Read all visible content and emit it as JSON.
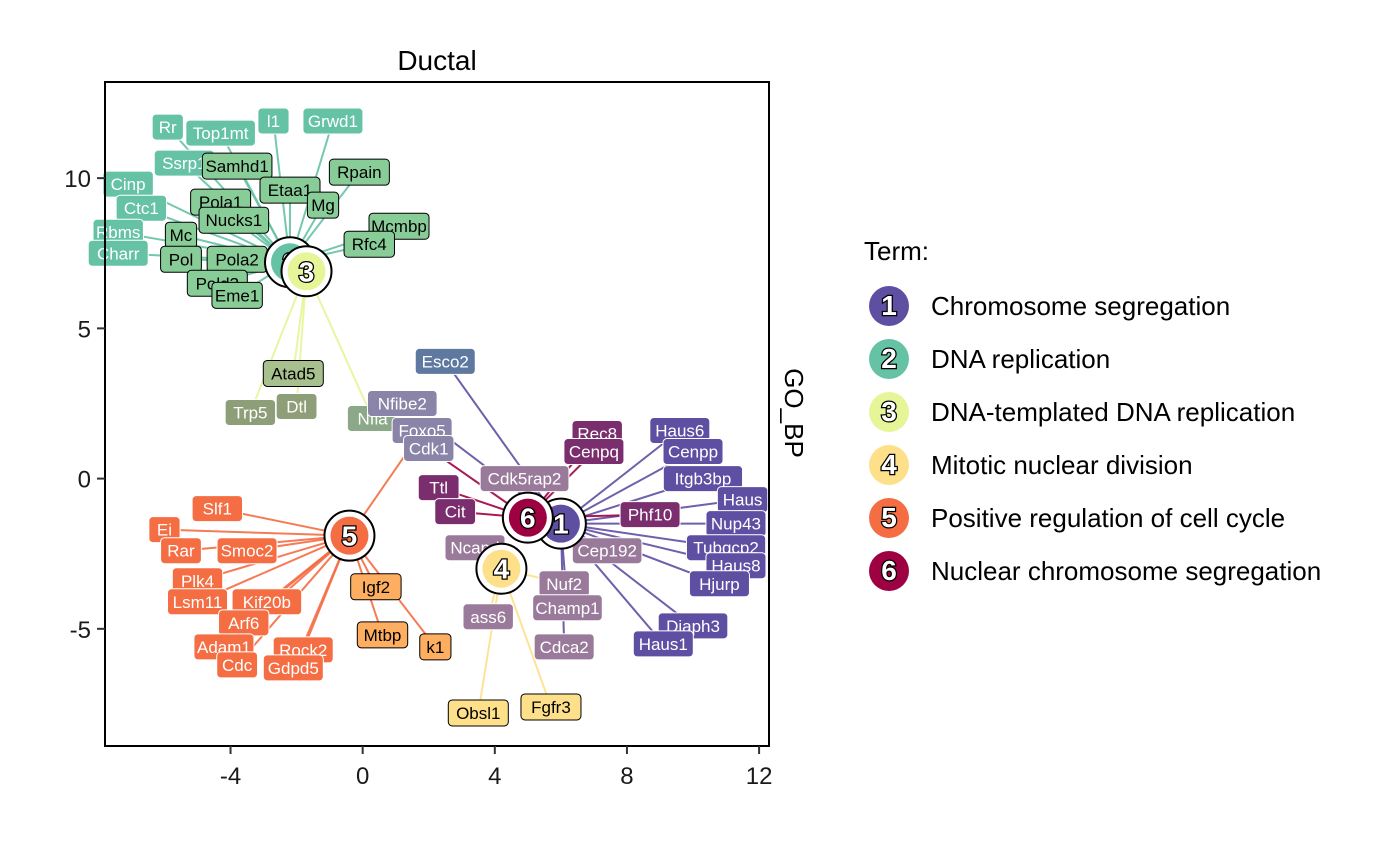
{
  "chart_data": {
    "type": "scatter",
    "title": "Ductal",
    "strip_label": "GO_BP",
    "xlim": [
      -7.8,
      12.3
    ],
    "ylim": [
      -8.9,
      13.2
    ],
    "x_ticks": [
      -4,
      0,
      4,
      8,
      12
    ],
    "y_ticks": [
      -5,
      0,
      5,
      10
    ],
    "legend": {
      "title": "Term:",
      "placement": "right",
      "entries": [
        {
          "id": "1",
          "label": "Chromosome segregation",
          "color": "#5E4FA2"
        },
        {
          "id": "2",
          "label": "DNA replication",
          "color": "#66C2A5"
        },
        {
          "id": "3",
          "label": "DNA-templated DNA replication",
          "color": "#E6F598"
        },
        {
          "id": "4",
          "label": "Mitotic nuclear division",
          "color": "#FEE08B"
        },
        {
          "id": "5",
          "label": "Positive regulation of cell cycle",
          "color": "#F46D43"
        },
        {
          "id": "6",
          "label": "Nuclear chromosome segregation",
          "color": "#9E0142"
        }
      ]
    },
    "term_centers": [
      {
        "id": "1",
        "x": 6.0,
        "y": -1.5
      },
      {
        "id": "2",
        "x": -2.2,
        "y": 7.2
      },
      {
        "id": "3",
        "x": -1.7,
        "y": 6.9
      },
      {
        "id": "4",
        "x": 4.2,
        "y": -3.0
      },
      {
        "id": "5",
        "x": -0.4,
        "y": -1.9
      },
      {
        "id": "6",
        "x": 5.0,
        "y": -1.3
      }
    ],
    "genes": [
      {
        "label": "Rr",
        "x": -5.9,
        "y": 11.7,
        "color": "#66C2A5",
        "term": "2"
      },
      {
        "label": "Top1mt",
        "x": -4.3,
        "y": 11.5,
        "color": "#66C2A5",
        "term": "2"
      },
      {
        "label": "l1",
        "x": -2.7,
        "y": 11.9,
        "color": "#66C2A5",
        "term": "2"
      },
      {
        "label": "Grwd1",
        "x": -0.9,
        "y": 11.9,
        "color": "#66C2A5",
        "term": "2"
      },
      {
        "label": "Ssrp1",
        "x": -5.4,
        "y": 10.5,
        "color": "#66C2A5",
        "term": "2"
      },
      {
        "label": "Cinp",
        "x": -7.1,
        "y": 9.8,
        "color": "#66C2A5",
        "term": "2"
      },
      {
        "label": "Ctc1",
        "x": -6.7,
        "y": 9.0,
        "color": "#66C2A5",
        "term": "2"
      },
      {
        "label": "Rbms",
        "x": -7.4,
        "y": 8.2,
        "color": "#66C2A5",
        "term": "2"
      },
      {
        "label": "Charr",
        "x": -7.4,
        "y": 7.5,
        "color": "#66C2A5",
        "term": "2"
      },
      {
        "label": "Samhd1",
        "x": -3.8,
        "y": 10.4,
        "color": "#88CC98",
        "term": "2"
      },
      {
        "label": "Rpain",
        "x": -0.1,
        "y": 10.2,
        "color": "#88CC98",
        "term": "2"
      },
      {
        "label": "Etaa1",
        "x": -2.2,
        "y": 9.6,
        "color": "#88CC98",
        "term": "2"
      },
      {
        "label": "Pola1",
        "x": -4.3,
        "y": 9.2,
        "color": "#88CC98",
        "term": "2"
      },
      {
        "label": "Nucks1",
        "x": -3.9,
        "y": 8.6,
        "color": "#88CC98",
        "term": "2"
      },
      {
        "label": "Mg",
        "x": -1.2,
        "y": 9.1,
        "color": "#88CC98",
        "term": "2"
      },
      {
        "label": "Mcmbp",
        "x": 1.1,
        "y": 8.4,
        "color": "#88CC98",
        "term": "2"
      },
      {
        "label": "Mc",
        "x": -5.5,
        "y": 8.1,
        "color": "#88CC98",
        "term": "2"
      },
      {
        "label": "Rfc4",
        "x": 0.2,
        "y": 7.8,
        "color": "#88CC98",
        "term": "2"
      },
      {
        "label": "Pola2",
        "x": -3.8,
        "y": 7.3,
        "color": "#88CC98",
        "term": "2"
      },
      {
        "label": "Pol",
        "x": -5.5,
        "y": 7.3,
        "color": "#88CC98",
        "term": "2"
      },
      {
        "label": "Pold3",
        "x": -4.4,
        "y": 6.5,
        "color": "#88CC98",
        "term": "2"
      },
      {
        "label": "Eme1",
        "x": -3.8,
        "y": 6.1,
        "color": "#88CC98",
        "term": "2"
      },
      {
        "label": "Atad5",
        "x": -2.1,
        "y": 3.5,
        "color": "#A8C08E",
        "term": "3"
      },
      {
        "label": "Dtl",
        "x": -2.0,
        "y": 2.4,
        "color": "#8E9E78",
        "term": "3"
      },
      {
        "label": "Trp5",
        "x": -3.4,
        "y": 2.2,
        "color": "#8E9E78",
        "term": "3"
      },
      {
        "label": "Nfia",
        "x": 0.3,
        "y": 2.0,
        "color": "#8BA888",
        "term": "3"
      },
      {
        "label": "Esco2",
        "x": 2.5,
        "y": 3.9,
        "color": "#5E78A0",
        "term": "1"
      },
      {
        "label": "Nfibe2",
        "x": 1.2,
        "y": 2.5,
        "color": "#8A84A8",
        "term": "1"
      },
      {
        "label": "Foxo5",
        "x": 1.8,
        "y": 1.6,
        "color": "#8A84A8",
        "term": "5"
      },
      {
        "label": "Cdk1",
        "x": 2.0,
        "y": 1.0,
        "color": "#8A84A8",
        "term": "6"
      },
      {
        "label": "Rec8",
        "x": 7.1,
        "y": 1.5,
        "color": "#7A2E6E",
        "term": "6"
      },
      {
        "label": "Cenpq",
        "x": 7.0,
        "y": 0.9,
        "color": "#7A2E6E",
        "term": "6"
      },
      {
        "label": "Haus6",
        "x": 9.6,
        "y": 1.6,
        "color": "#5E4FA2",
        "term": "1"
      },
      {
        "label": "Cenpp",
        "x": 10.0,
        "y": 0.9,
        "color": "#5E4FA2",
        "term": "1"
      },
      {
        "label": "Itgb3bp",
        "x": 10.3,
        "y": 0.0,
        "color": "#5E4FA2",
        "term": "1"
      },
      {
        "label": "Haus",
        "x": 11.5,
        "y": -0.7,
        "color": "#5E4FA2",
        "term": "1"
      },
      {
        "label": "Nup43",
        "x": 11.3,
        "y": -1.5,
        "color": "#5E4FA2",
        "term": "1"
      },
      {
        "label": "Tubgcp2",
        "x": 11.0,
        "y": -2.3,
        "color": "#5E4FA2",
        "term": "1"
      },
      {
        "label": "Haus8",
        "x": 11.3,
        "y": -2.9,
        "color": "#5E4FA2",
        "term": "1"
      },
      {
        "label": "Hjurp",
        "x": 10.8,
        "y": -3.5,
        "color": "#5E4FA2",
        "term": "1"
      },
      {
        "label": "Diaph3",
        "x": 10.0,
        "y": -4.9,
        "color": "#5E4FA2",
        "term": "1"
      },
      {
        "label": "Haus1",
        "x": 9.1,
        "y": -5.5,
        "color": "#5E4FA2",
        "term": "1"
      },
      {
        "label": "Phf10",
        "x": 8.7,
        "y": -1.2,
        "color": "#7A2E6E",
        "term": "6"
      },
      {
        "label": "Ttl",
        "x": 2.3,
        "y": -0.3,
        "color": "#7A2E6E",
        "term": "6"
      },
      {
        "label": "Cit",
        "x": 2.8,
        "y": -1.1,
        "color": "#7A2E6E",
        "term": "6"
      },
      {
        "label": "Cdk5rap2",
        "x": 4.9,
        "y": 0.0,
        "color": "#9A7A9A",
        "term": "1"
      },
      {
        "label": "Ncapd",
        "x": 3.4,
        "y": -2.3,
        "color": "#9A7A9A",
        "term": "4"
      },
      {
        "label": "Cep192",
        "x": 7.4,
        "y": -2.4,
        "color": "#9A7A9A",
        "term": "1"
      },
      {
        "label": "Nuf2",
        "x": 6.1,
        "y": -3.5,
        "color": "#9A7A9A",
        "term": "4"
      },
      {
        "label": "Champ1",
        "x": 6.2,
        "y": -4.3,
        "color": "#9A7A9A",
        "term": "1"
      },
      {
        "label": "Cdca2",
        "x": 6.1,
        "y": -5.6,
        "color": "#9A7A9A",
        "term": "1"
      },
      {
        "label": "ass6",
        "x": 3.8,
        "y": -4.6,
        "color": "#9A7A9A",
        "term": "4"
      },
      {
        "label": "Slf1",
        "x": -4.4,
        "y": -1.0,
        "color": "#F46D43",
        "term": "5"
      },
      {
        "label": "Ei",
        "x": -6.0,
        "y": -1.7,
        "color": "#F46D43",
        "term": "5"
      },
      {
        "label": "Smoc2",
        "x": -3.5,
        "y": -2.4,
        "color": "#F46D43",
        "term": "5"
      },
      {
        "label": "Rar",
        "x": -5.5,
        "y": -2.4,
        "color": "#F46D43",
        "term": "5"
      },
      {
        "label": "Plk4",
        "x": -5.0,
        "y": -3.4,
        "color": "#F46D43",
        "term": "5"
      },
      {
        "label": "Kif20b",
        "x": -2.9,
        "y": -4.1,
        "color": "#F46D43",
        "term": "5"
      },
      {
        "label": "Lsm11",
        "x": -5.0,
        "y": -4.1,
        "color": "#F46D43",
        "term": "5"
      },
      {
        "label": "Arf6",
        "x": -3.6,
        "y": -4.8,
        "color": "#F46D43",
        "term": "5"
      },
      {
        "label": "Adam1",
        "x": -4.2,
        "y": -5.6,
        "color": "#F46D43",
        "term": "5"
      },
      {
        "label": "Rock2",
        "x": -1.8,
        "y": -5.7,
        "color": "#F46D43",
        "term": "5"
      },
      {
        "label": "Cdc",
        "x": -3.8,
        "y": -6.2,
        "color": "#F46D43",
        "term": "5"
      },
      {
        "label": "Gdpd5",
        "x": -2.1,
        "y": -6.3,
        "color": "#F46D43",
        "term": "5"
      },
      {
        "label": "Igf2",
        "x": 0.4,
        "y": -3.6,
        "color": "#FDAE61",
        "term": "5"
      },
      {
        "label": "Mtbp",
        "x": 0.6,
        "y": -5.2,
        "color": "#FDAE61",
        "term": "5"
      },
      {
        "label": "k1",
        "x": 2.2,
        "y": -5.6,
        "color": "#FDAE61",
        "term": "5"
      },
      {
        "label": "Obsl1",
        "x": 3.5,
        "y": -7.8,
        "color": "#FEE08B",
        "term": "4"
      },
      {
        "label": "Fgfr3",
        "x": 5.7,
        "y": -7.6,
        "color": "#FEE08B",
        "term": "4"
      }
    ]
  }
}
